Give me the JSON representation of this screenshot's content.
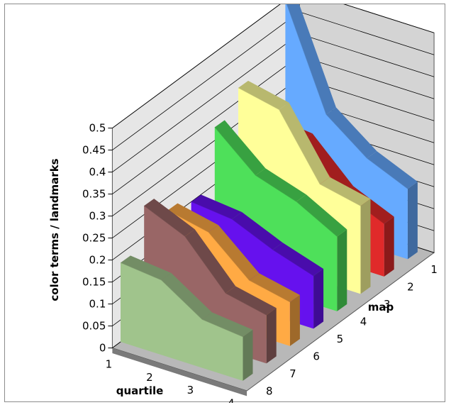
{
  "chart_data": {
    "type": "3d-area",
    "title": "",
    "xlabel": "quartile",
    "ylabel": "color terms / landmarks",
    "zlabel": "map",
    "x": [
      1,
      2,
      3,
      4
    ],
    "yticks": [
      "0",
      "0.05",
      "0.1",
      "0.15",
      "0.2",
      "0.25",
      "0.3",
      "0.35",
      "0.4",
      "0.45",
      "0.5"
    ],
    "ylim": [
      0,
      0.5
    ],
    "grid": true,
    "series": [
      {
        "name": "1",
        "values": [
          0.5,
          0.27,
          0.2,
          0.16
        ],
        "color": "#66aaff"
      },
      {
        "name": "2",
        "values": [
          0.26,
          0.25,
          0.16,
          0.12
        ],
        "color": "#e02a2a"
      },
      {
        "name": "3",
        "values": [
          0.38,
          0.36,
          0.22,
          0.2
        ],
        "color": "#ffff99"
      },
      {
        "name": "4",
        "values": [
          0.33,
          0.25,
          0.22,
          0.17
        ],
        "color": "#4ee05a"
      },
      {
        "name": "5",
        "values": [
          0.2,
          0.19,
          0.15,
          0.12
        ],
        "color": "#6611ee"
      },
      {
        "name": "6",
        "values": [
          0.22,
          0.2,
          0.12,
          0.1
        ],
        "color": "#ffaa44"
      },
      {
        "name": "7",
        "values": [
          0.27,
          0.23,
          0.13,
          0.11
        ],
        "color": "#996666"
      },
      {
        "name": "8",
        "values": [
          0.18,
          0.17,
          0.11,
          0.1
        ],
        "color": "#a0c48c"
      }
    ]
  }
}
